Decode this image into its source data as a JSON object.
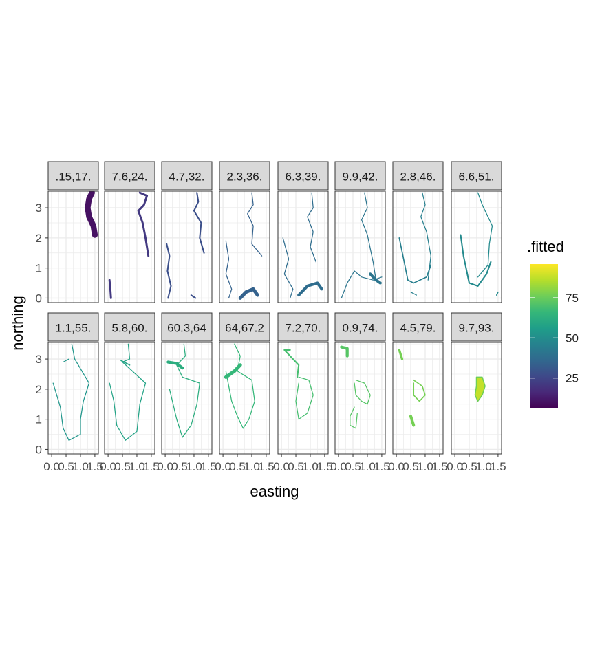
{
  "chart_data": {
    "type": "heatmap",
    "xlabel": "easting",
    "ylabel": "northing",
    "legend": {
      "title": ".fitted",
      "ticks": [
        25,
        50,
        75
      ],
      "range": [
        6,
        96
      ],
      "placement": "right",
      "colors": [
        "#440154",
        "#482878",
        "#3e4989",
        "#31688e",
        "#26828e",
        "#1f9e89",
        "#35b779",
        "#6ece58",
        "#b5de2b",
        "#fde725"
      ]
    },
    "x": {
      "ticks": [
        0.0,
        0.5,
        1.0,
        1.5
      ],
      "tick_labels": [
        "0.0",
        "0.5",
        "1.0",
        "1.5"
      ],
      "range": [
        -0.05,
        1.55
      ]
    },
    "y": {
      "ticks": [
        0,
        1,
        2,
        3
      ],
      "tick_labels": [
        "0",
        "1",
        "2",
        "3"
      ],
      "range": [
        -0.15,
        3.55
      ]
    },
    "grid": true,
    "facets": [
      {
        "label": ".15,17.",
        "value": 10
      },
      {
        "label": "7.6,24.",
        "value": 21
      },
      {
        "label": "4.7,32.",
        "value": 28
      },
      {
        "label": "2.3,36.",
        "value": 34
      },
      {
        "label": "6.3,39.",
        "value": 38
      },
      {
        "label": "9.9,42.",
        "value": 41
      },
      {
        "label": "2.8,46.",
        "value": 45
      },
      {
        "label": "6.6,51.",
        "value": 49
      },
      {
        "label": "1.1,55.",
        "value": 53
      },
      {
        "label": "5.8,60.",
        "value": 58
      },
      {
        "label": "60.3,64",
        "value": 62
      },
      {
        "label": "64,67.2",
        "value": 66
      },
      {
        "label": "7.2,70.",
        "value": 69
      },
      {
        "label": "0.9,74.",
        "value": 72
      },
      {
        "label": "4.5,79.",
        "value": 77
      },
      {
        "label": "9.7,93.",
        "value": 88
      }
    ]
  }
}
